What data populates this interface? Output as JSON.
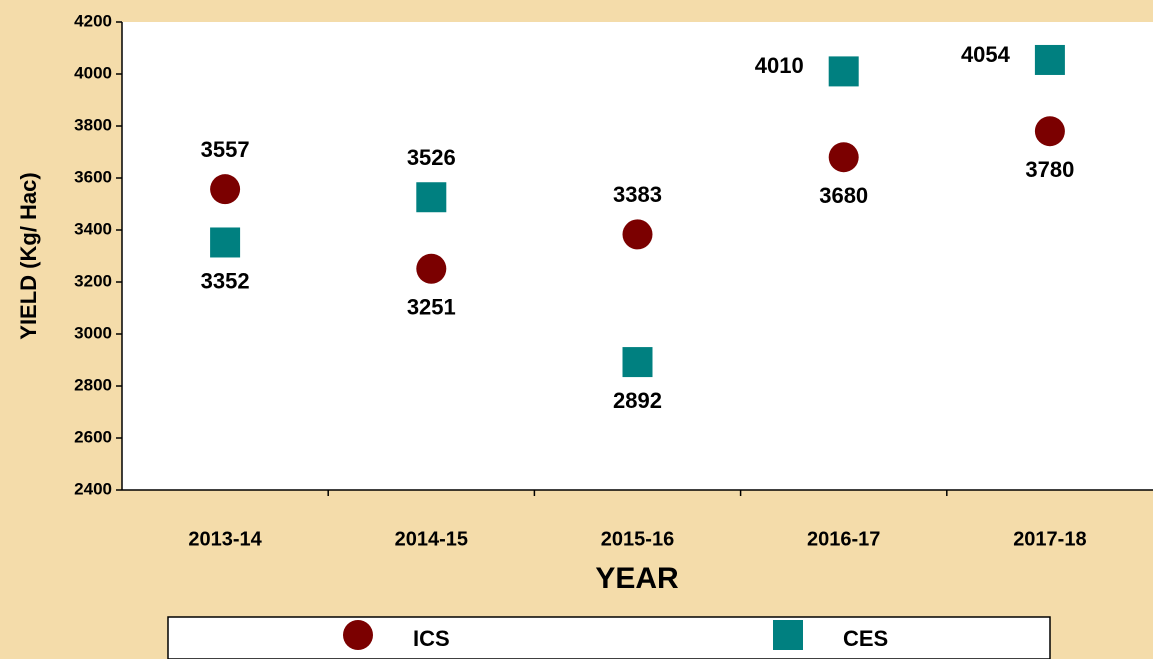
{
  "chart_data": {
    "type": "scatter",
    "categories": [
      "2013-14",
      "2014-15",
      "2015-16",
      "2016-17",
      "2017-18"
    ],
    "series": [
      {
        "name": "ICS",
        "color": "#7b0000",
        "marker": "circle",
        "values": [
          3557,
          3251,
          3383,
          3680,
          3780
        ]
      },
      {
        "name": "CES",
        "color": "#008080",
        "marker": "square",
        "values": [
          3352,
          3526,
          2892,
          4010,
          4054
        ]
      }
    ],
    "x_label": "YEAR",
    "y_label": "YIELD (Kg/ Hac)",
    "ylim": [
      2400,
      4200
    ],
    "yticks": [
      2400,
      2600,
      2800,
      3000,
      3200,
      3400,
      3600,
      3800,
      4000,
      4200
    ],
    "grid": false,
    "legend": "bottom"
  }
}
